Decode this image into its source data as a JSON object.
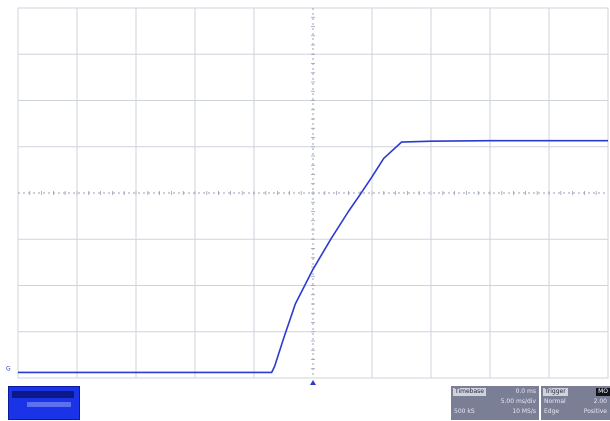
{
  "chart_data": {
    "type": "line",
    "title": "",
    "xlabel": "",
    "ylabel": "",
    "x_divisions": 10,
    "y_divisions": 8,
    "xlim": [
      0,
      10
    ],
    "ylim": [
      0,
      8
    ],
    "grid": true,
    "trace_color": "#2b3bd1",
    "grid_color": "#cfd3dc",
    "center_axis_color": "#9aa0b4",
    "series": [
      {
        "name": "",
        "x": [
          0.0,
          4.3,
          4.35,
          4.5,
          4.7,
          5.0,
          5.3,
          5.6,
          5.8,
          6.0,
          6.2,
          6.5,
          7.0,
          8.0,
          9.0,
          10.0
        ],
        "y": [
          0.12,
          0.12,
          0.25,
          0.85,
          1.6,
          2.35,
          3.0,
          3.6,
          3.97,
          4.35,
          4.75,
          5.1,
          5.12,
          5.13,
          5.13,
          5.13
        ]
      }
    ],
    "ground_marker": {
      "label": "G",
      "y": 0.12
    },
    "trigger_marker": {
      "x": 5.0
    }
  },
  "timebase_panel": {
    "title": "Timebase",
    "offset": "0.0 ms",
    "rate": "5.00 ms/div",
    "points": "500 kS",
    "sample": "10 MS/s"
  },
  "trigger_panel": {
    "title": "Trigger",
    "mode_badge": "MO",
    "mode": "Normal",
    "level": "2.00",
    "type": "Edge",
    "slope": "Positive"
  },
  "channel_panel": {
    "label": "",
    "value": ""
  }
}
